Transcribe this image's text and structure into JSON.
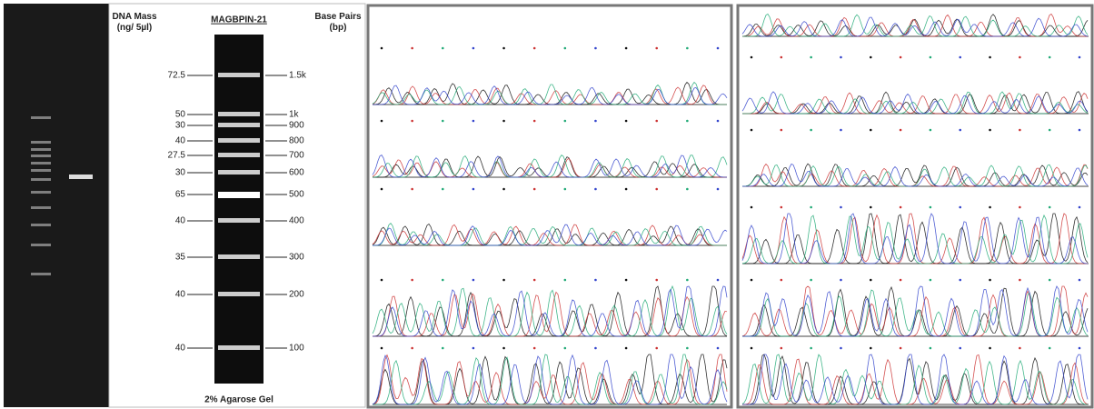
{
  "header": {
    "mass_label": [
      "DNA Mass",
      "(ng/ 5µl)"
    ],
    "title": "MAGBPIN-21",
    "bp_label": [
      "Base Pairs",
      "(bp)"
    ]
  },
  "ladder": {
    "bands": [
      {
        "mass": "72.5",
        "size": "1.5k"
      },
      {
        "mass": "50",
        "size": "1k"
      },
      {
        "mass": "30",
        "size": "900"
      },
      {
        "mass": "40",
        "size": "800"
      },
      {
        "mass": "27.5",
        "size": "700"
      },
      {
        "mass": "30",
        "size": "600"
      },
      {
        "mass": "65",
        "size": "500"
      },
      {
        "mass": "40",
        "size": "400"
      },
      {
        "mass": "35",
        "size": "300"
      },
      {
        "mass": "40",
        "size": "200"
      },
      {
        "mass": "40",
        "size": "100"
      }
    ]
  },
  "footer": "2% Agarose Gel"
}
